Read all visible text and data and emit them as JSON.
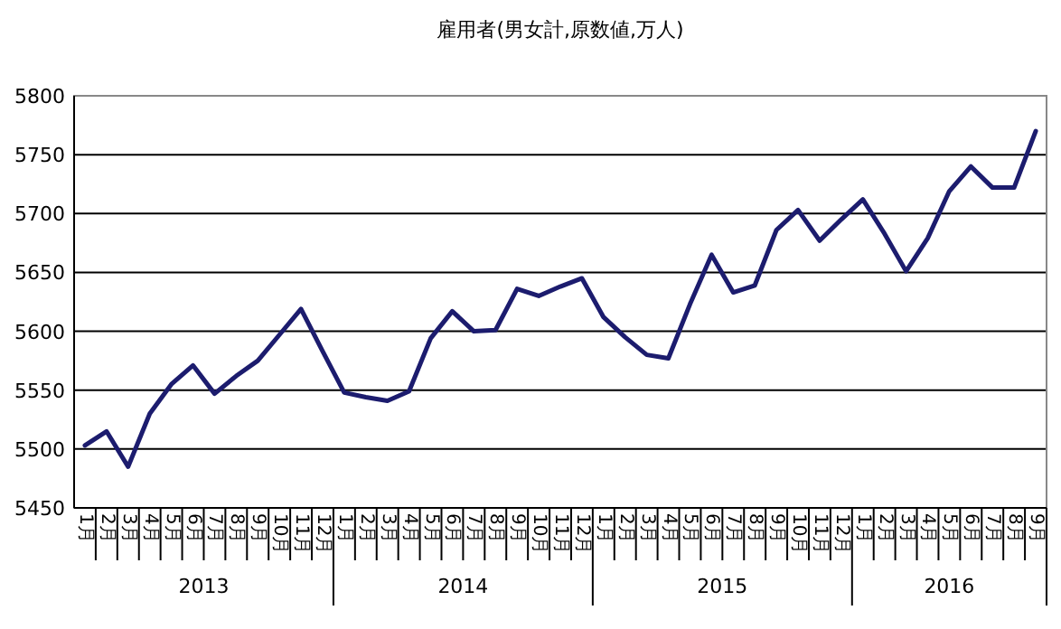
{
  "chart_data": {
    "type": "line",
    "title": "雇用者(男女計,原数値,万人)",
    "categories": [
      "1月",
      "2月",
      "3月",
      "4月",
      "5月",
      "6月",
      "7月",
      "8月",
      "9月",
      "10月",
      "11月",
      "12月",
      "1月",
      "2月",
      "3月",
      "4月",
      "5月",
      "6月",
      "7月",
      "8月",
      "9月",
      "10月",
      "11月",
      "12月",
      "1月",
      "2月",
      "3月",
      "4月",
      "5月",
      "6月",
      "7月",
      "8月",
      "9月",
      "10月",
      "11月",
      "12月",
      "1月",
      "2月",
      "3月",
      "4月",
      "5月",
      "6月",
      "7月",
      "8月",
      "9月"
    ],
    "series": [
      {
        "color": "#1c1c6e",
        "values": [
          5503,
          5515,
          5485,
          5530,
          5555,
          5571,
          5547,
          5562,
          5575,
          5597,
          5619,
          5583,
          5548,
          5544,
          5541,
          5549,
          5594,
          5617,
          5600,
          5601,
          5636,
          5630,
          5638,
          5645,
          5612,
          5595,
          5580,
          5577,
          5623,
          5665,
          5633,
          5639,
          5686,
          5703,
          5677,
          5695,
          5712,
          5683,
          5651,
          5679,
          5719,
          5740,
          5722,
          5722,
          5770
        ]
      }
    ],
    "annotations": [
      "2013",
      "2014",
      "2015",
      "2016"
    ],
    "ylim": [
      5450,
      5800
    ],
    "yticks": [
      5450,
      5500,
      5550,
      5600,
      5650,
      5700,
      5750,
      5800
    ],
    "grid": "y",
    "marker": "none",
    "line_style": "solid"
  }
}
